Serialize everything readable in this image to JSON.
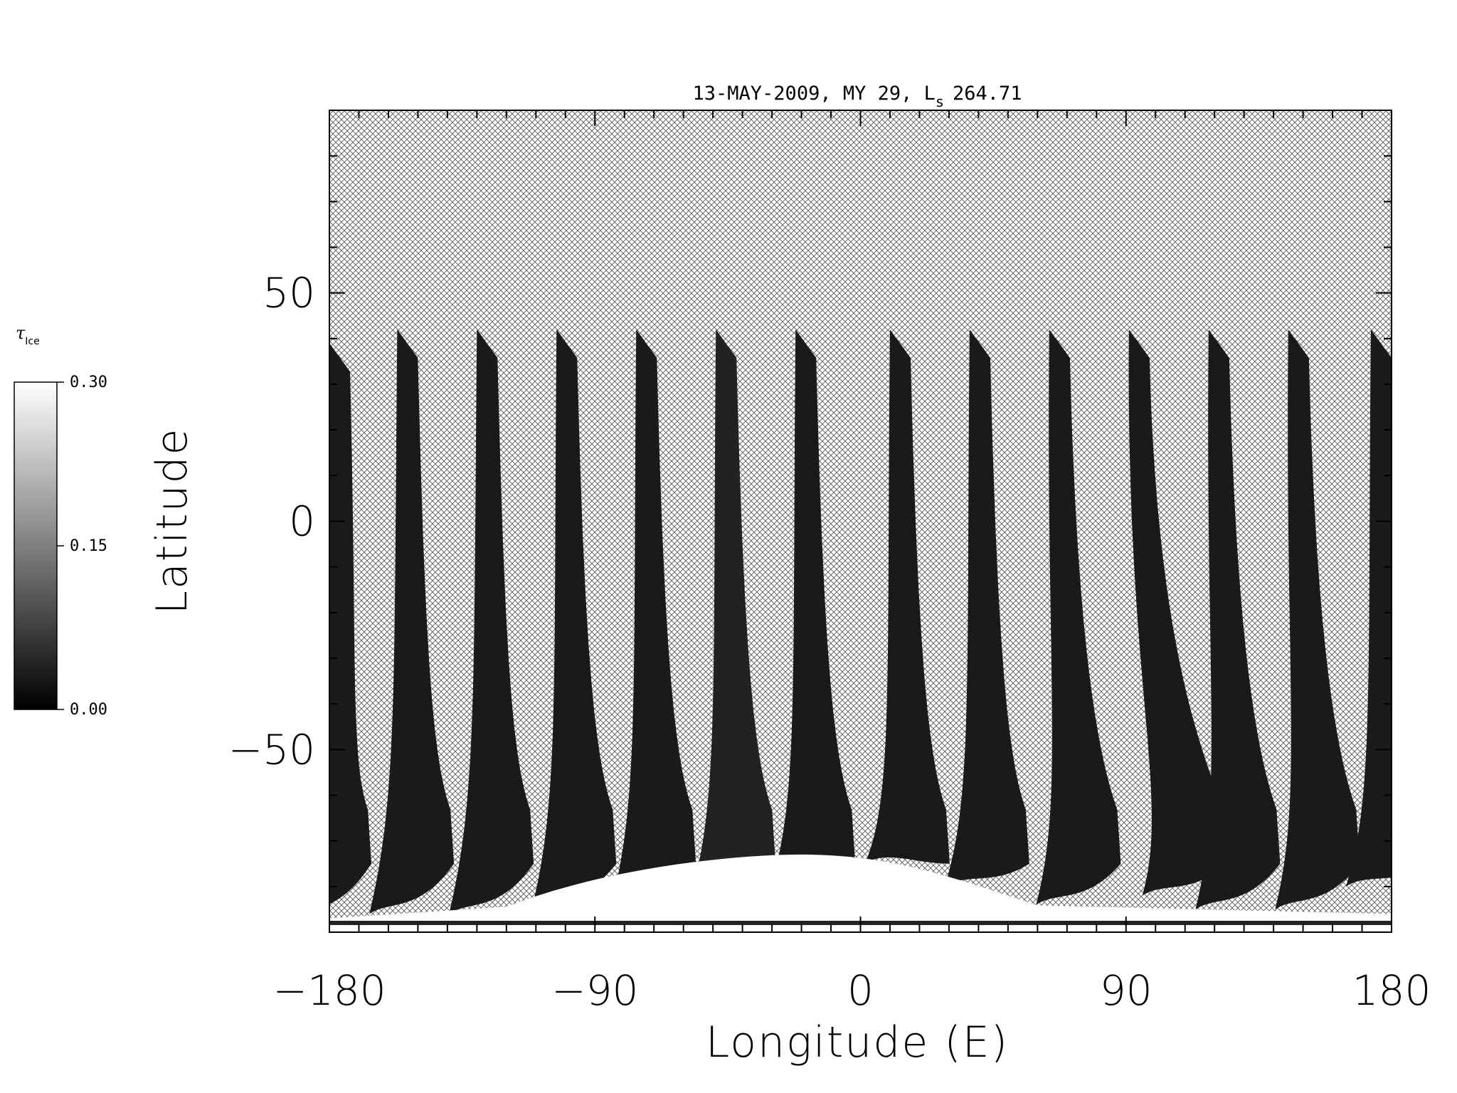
{
  "chart_data": {
    "type": "heatmap",
    "title": "13-MAY-2009, MY 29,  L",
    "title_sub": "s",
    "title_value": "264.71",
    "xlabel": "Longitude (E)",
    "ylabel": "Latitude",
    "xlim": [
      -180,
      180
    ],
    "ylim": [
      -90,
      90
    ],
    "xticks": [
      -180,
      -90,
      0,
      90,
      180
    ],
    "xtick_labels": [
      "−180",
      "−90",
      "0",
      "90",
      "180"
    ],
    "yticks": [
      -50,
      0,
      50
    ],
    "ytick_labels": [
      "−50",
      "0",
      "50"
    ],
    "x_minor_step": 10,
    "y_minor_step": 10,
    "no_data_fill": "crosshatch",
    "colorbar": {
      "label_main": "τ",
      "label_sub": "Ice",
      "min": 0.0,
      "max": 0.3,
      "ticks": [
        "0.00",
        "0.15",
        "0.30"
      ],
      "tick_values": [
        0.0,
        0.15,
        0.3
      ],
      "colors": [
        "#000000",
        "#ffffff"
      ]
    },
    "swaths": [
      {
        "lon_top": -180,
        "lon_bottom": -180,
        "lat_top": 39,
        "lat_bottom": -87,
        "value": 0.03
      },
      {
        "lon_top": -157,
        "lon_bottom": -152,
        "lat_top": 42,
        "lat_bottom": -86,
        "value": 0.03
      },
      {
        "lon_top": -130,
        "lon_bottom": -125,
        "lat_top": 42,
        "lat_bottom": -86,
        "value": 0.03
      },
      {
        "lon_top": -103,
        "lon_bottom": -97,
        "lat_top": 42,
        "lat_bottom": -85,
        "value": 0.03
      },
      {
        "lon_top": -76,
        "lon_bottom": -70,
        "lat_top": 42,
        "lat_bottom": -84,
        "value": 0.03
      },
      {
        "lon_top": -49,
        "lon_bottom": -43,
        "lat_top": 42,
        "lat_bottom": -82,
        "value": 0.04
      },
      {
        "lon_top": -22,
        "lon_bottom": -16,
        "lat_top": 42,
        "lat_bottom": -80,
        "value": 0.03
      },
      {
        "lon_top": 10,
        "lon_bottom": 16,
        "lat_top": 42,
        "lat_bottom": -75,
        "value": 0.03
      },
      {
        "lon_top": 37,
        "lon_bottom": 43,
        "lat_top": 42,
        "lat_bottom": -80,
        "value": 0.03
      },
      {
        "lon_top": 64,
        "lon_bottom": 74,
        "lat_top": 42,
        "lat_bottom": -84,
        "value": 0.03
      },
      {
        "lon_top": 91,
        "lon_bottom": 110,
        "lat_top": 42,
        "lat_bottom": -82,
        "value": 0.03
      },
      {
        "lon_top": 118,
        "lon_bottom": 128,
        "lat_top": 42,
        "lat_bottom": -85,
        "value": 0.03
      },
      {
        "lon_top": 145,
        "lon_bottom": 155,
        "lat_top": 42,
        "lat_bottom": -85,
        "value": 0.03
      },
      {
        "lon_top": 173,
        "lon_bottom": 179,
        "lat_top": 42,
        "lat_bottom": -80,
        "value": 0.03
      }
    ],
    "polar_cloud": {
      "lon_range": [
        -120,
        60
      ],
      "lat_peak": -73,
      "lat_base": -86,
      "value": 0.3
    }
  }
}
